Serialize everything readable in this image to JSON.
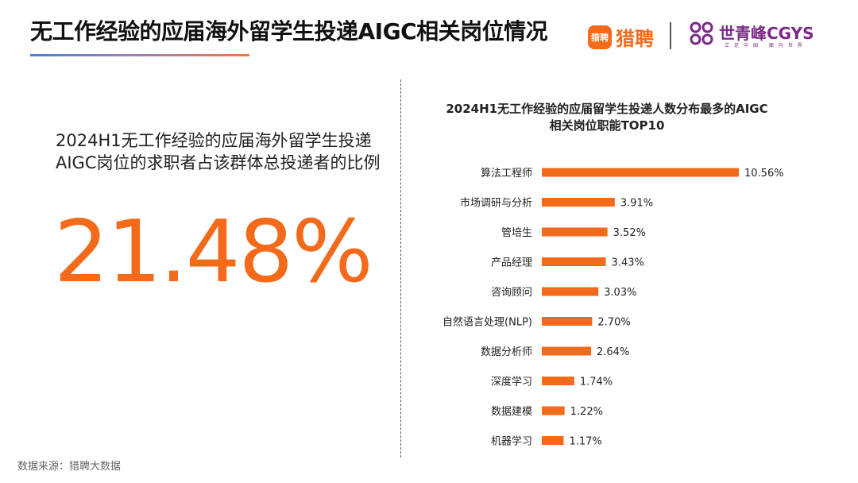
{
  "header": {
    "title": "无工作经验的应届海外留学生投递AIGC相关岗位情况",
    "logo_liepin_badge": "猎聘",
    "logo_liepin_text": "猎聘",
    "logo_cgys_name": "世青峰CGYS",
    "logo_cgys_sub": "立足中国 面向世界"
  },
  "left_panel": {
    "label": "2024H1无工作经验的应届海外留学生投递AIGC岗位的求职者占该群体总投递者的比例",
    "value": "21.48%"
  },
  "footer": {
    "source": "数据来源：猎聘大数据"
  },
  "colors": {
    "accent": "#f36a1a",
    "brand_purple": "#7a2a86"
  },
  "chart_data": {
    "type": "bar",
    "orientation": "horizontal",
    "title": "2024H1无工作经验的应届留学生投递人数分布最多的AIGC相关岗位职能TOP10",
    "categories": [
      "算法工程师",
      "市场调研与分析",
      "管培生",
      "产品经理",
      "咨询顾问",
      "自然语言处理(NLP)",
      "数据分析师",
      "深度学习",
      "数据建模",
      "机器学习"
    ],
    "values": [
      10.56,
      3.91,
      3.52,
      3.43,
      3.03,
      2.7,
      2.64,
      1.74,
      1.22,
      1.17
    ],
    "value_labels": [
      "10.56%",
      "3.91%",
      "3.52%",
      "3.43%",
      "3.03%",
      "2.70%",
      "2.64%",
      "1.74%",
      "1.22%",
      "1.17%"
    ],
    "unit": "%",
    "color": "#f36a1a",
    "grid": false,
    "legend": "none"
  }
}
